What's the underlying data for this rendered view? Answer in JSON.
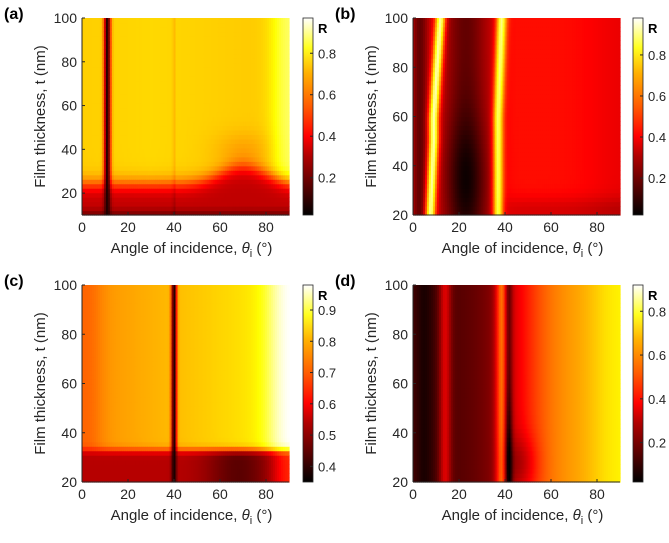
{
  "chart_data": [
    {
      "type": "heatmap",
      "panel_label": "(a)",
      "xlabel": "Angle of incidence, θi (°)",
      "ylabel": "Film thickness, t (nm)",
      "xlim": [
        0,
        90
      ],
      "ylim": [
        10,
        100
      ],
      "xticks": [
        0,
        20,
        40,
        60,
        80
      ],
      "yticks": [
        20,
        40,
        60,
        80,
        100
      ],
      "colorbar": {
        "title": "R",
        "range": [
          0.02,
          0.97
        ],
        "ticks": [
          0.2,
          0.4,
          0.6,
          0.8
        ]
      },
      "features": {
        "base": 0.74,
        "thin_film_value": 0.32,
        "dip_angle": 11,
        "dip_width": 1.2,
        "dip_min": 0.08
      }
    },
    {
      "type": "heatmap",
      "panel_label": "(b)",
      "xlabel": "Angle of incidence, θi (°)",
      "ylabel": "Film thickness, t (nm)",
      "xlim": [
        0,
        90
      ],
      "ylim": [
        20,
        100
      ],
      "xticks": [
        0,
        20,
        40,
        60,
        80
      ],
      "yticks": [
        20,
        40,
        60,
        80,
        100
      ],
      "colorbar": {
        "title": "R",
        "range": [
          0.02,
          0.98
        ],
        "ticks": [
          0.2,
          0.4,
          0.6,
          0.8
        ]
      },
      "features": {
        "base": 0.3,
        "peaks": [
          9,
          37
        ],
        "peak_value": 0.75,
        "dark_band": [
          15,
          30
        ]
      }
    },
    {
      "type": "heatmap",
      "panel_label": "(c)",
      "xlabel": "Angle of incidence, θi (°)",
      "ylabel": "Film thickness, t (nm)",
      "xlim": [
        0,
        90
      ],
      "ylim": [
        20,
        100
      ],
      "xticks": [
        0,
        20,
        40,
        60,
        80
      ],
      "yticks": [
        20,
        40,
        60,
        80,
        100
      ],
      "colorbar": {
        "title": "R",
        "range": [
          0.35,
          0.98
        ],
        "ticks": [
          0.4,
          0.5,
          0.6,
          0.7,
          0.8,
          0.9
        ]
      },
      "features": {
        "base": 0.8,
        "thin_film_value": 0.52,
        "dip_angle": 40,
        "dip_width": 1.0,
        "dip_min": 0.36
      }
    },
    {
      "type": "heatmap",
      "panel_label": "(d)",
      "xlabel": "Angle of incidence, θi (°)",
      "ylabel": "Film thickness, t (nm)",
      "xlim": [
        0,
        90
      ],
      "ylim": [
        20,
        100
      ],
      "xticks": [
        0,
        20,
        40,
        60,
        80
      ],
      "yticks": [
        20,
        40,
        60,
        80,
        100
      ],
      "colorbar": {
        "title": "R",
        "range": [
          0.02,
          0.92
        ],
        "ticks": [
          0.2,
          0.4,
          0.6,
          0.8
        ]
      },
      "features": {
        "base": 0.12,
        "peaks": [
          14,
          38
        ],
        "dip_angle": 41
      }
    }
  ]
}
